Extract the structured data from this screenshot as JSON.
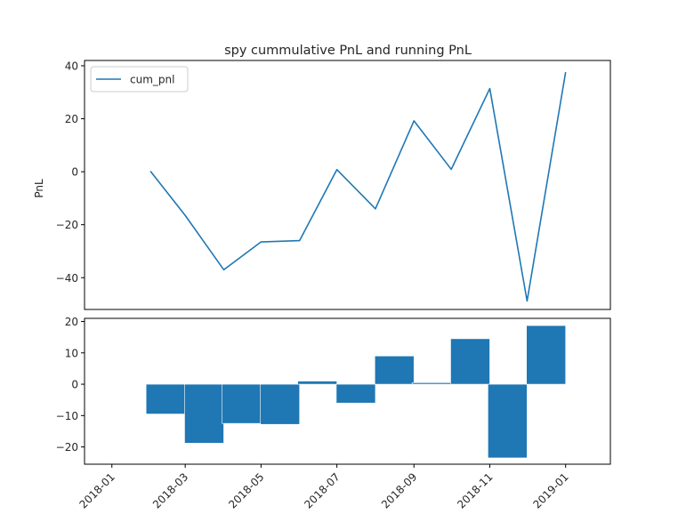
{
  "chart_data": [
    {
      "type": "line",
      "title": "spy cummulative PnL and running PnL",
      "xlabel": "",
      "ylabel": "PnL",
      "x": [
        "2018-02-01",
        "2018-03-01",
        "2018-04-01",
        "2018-05-01",
        "2018-06-01",
        "2018-07-01",
        "2018-08-01",
        "2018-09-01",
        "2018-10-01",
        "2018-11-01",
        "2018-12-01",
        "2019-01-01"
      ],
      "series": [
        {
          "name": "cum_pnl",
          "color": "#1f77b4",
          "values": [
            0.2,
            -16.5,
            -37.0,
            -26.5,
            -26.0,
            0.8,
            -14.0,
            19.2,
            0.9,
            31.4,
            -48.8,
            37.6
          ]
        }
      ],
      "ylim": [
        -52,
        42
      ],
      "yticks": [
        40,
        20,
        0,
        -20,
        -40
      ],
      "ytick_labels": [
        "40",
        "20",
        "0",
        "−20",
        "−40"
      ],
      "legend": {
        "position": "upper-left",
        "entries": [
          "cum_pnl"
        ]
      },
      "grid": false
    },
    {
      "type": "bar",
      "title": "",
      "xlabel": "",
      "ylabel": "",
      "x": [
        "2018-03-01",
        "2018-04-01",
        "2018-05-01",
        "2018-06-01",
        "2018-07-01",
        "2018-08-01",
        "2018-09-01",
        "2018-10-01",
        "2018-11-01",
        "2018-12-01",
        "2019-01-01"
      ],
      "values": [
        -9.5,
        -18.8,
        -12.5,
        -12.8,
        1.0,
        -6.0,
        9.0,
        0.5,
        14.5,
        -23.5,
        18.7
      ],
      "color": "#1f77b4",
      "ylim": [
        -25.5,
        21
      ],
      "yticks": [
        20,
        10,
        0,
        -10,
        -20
      ],
      "ytick_labels": [
        "20",
        "10",
        "0",
        "−10",
        "−20"
      ],
      "xticks": [
        "2018-01-01",
        "2018-03-01",
        "2018-05-01",
        "2018-07-01",
        "2018-09-01",
        "2018-11-01",
        "2019-01-01"
      ],
      "xtick_labels": [
        "2018-01",
        "2018-03",
        "2018-05",
        "2018-07",
        "2018-09",
        "2018-11",
        "2019-01"
      ],
      "xtick_rotation_deg": 45,
      "grid": false
    }
  ]
}
